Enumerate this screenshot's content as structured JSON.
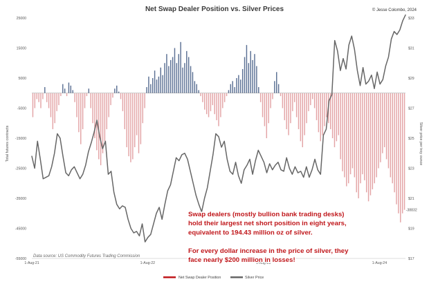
{
  "chart_data": {
    "type": "bar+line",
    "title": "Net Swap Dealer Position vs. Silver Prices",
    "copyright": "© Jesse Colombo, 2024",
    "left_axis": {
      "label": "Total futures contracts",
      "ticks": [
        25000,
        15000,
        5000,
        -5000,
        -15000,
        -25000,
        -35000,
        -45000,
        -55000
      ],
      "tick_labels": [
        "25000",
        "15000",
        "5000",
        "-5000",
        "-15000",
        "-25000",
        "-35000",
        "-45000",
        "-55000"
      ],
      "range": [
        -55000,
        25000
      ]
    },
    "right_axis": {
      "label": "Silver price per troy ounce",
      "ticks": [
        33,
        31,
        29,
        27,
        25,
        23,
        21,
        19,
        17
      ],
      "tick_labels": [
        "$33",
        "$31",
        "$29",
        "$27",
        "$25",
        "$23",
        "$21",
        "$19",
        "$17"
      ],
      "range": [
        17,
        33
      ]
    },
    "x_axis": {
      "ticks": [
        "2021-08-01",
        "2022-08-01",
        "2023-08-01",
        "2024-08-01"
      ],
      "tick_labels": [
        "1-Aug-21",
        "1-Aug-22",
        "1-Aug-23",
        "1-Aug-24"
      ],
      "start": "2021-08-01",
      "end": "2024-10-22"
    },
    "series": [
      {
        "name": "Net Swap Dealer Position",
        "type": "bar",
        "positive_color": "#5a6f93",
        "negative_color": "#e3a3a5",
        "values": [
          -8000,
          -5000,
          -2000,
          -3000,
          -5000,
          -2000,
          2000,
          -3000,
          -5000,
          -8000,
          -12000,
          -10000,
          -6000,
          -4000,
          -1000,
          3000,
          1500,
          -1000,
          3500,
          2500,
          1000,
          -3000,
          -8000,
          -13000,
          -17000,
          -12000,
          -5000,
          -1000,
          1500,
          -5000,
          -10000,
          -15000,
          -19000,
          -22000,
          -24000,
          -20000,
          -16000,
          -12000,
          -8000,
          -4000,
          -1500,
          1500,
          2500,
          500,
          -2000,
          -6000,
          -12000,
          -18000,
          -21000,
          -23000,
          -22000,
          -18000,
          -14000,
          -20000,
          -17000,
          -10000,
          -5000,
          2000,
          5500,
          3000,
          5000,
          7500,
          4500,
          5500,
          8500,
          6000,
          10000,
          13000,
          9000,
          11000,
          12000,
          15000,
          10000,
          13000,
          17000,
          8500,
          10000,
          14000,
          12000,
          9000,
          7000,
          4000,
          3000,
          1000,
          -1000,
          -3000,
          -5500,
          -7000,
          -8000,
          -6000,
          -4000,
          -7000,
          -9000,
          -11000,
          -8000,
          -5000,
          -3000,
          -1000,
          1000,
          3000,
          4000,
          2000,
          5000,
          6000,
          4500,
          8000,
          12000,
          16000,
          10000,
          14000,
          11000,
          13000,
          9000,
          2000,
          -3000,
          -8000,
          -11000,
          -15000,
          -10000,
          -5000,
          -2000,
          4000,
          7000,
          3000,
          -1000,
          -5000,
          -9000,
          -12000,
          -14000,
          -10000,
          -6000,
          -3000,
          -8000,
          -12000,
          -16000,
          -18000,
          -14000,
          -10000,
          -6000,
          -4000,
          -2000,
          -5000,
          -9000,
          -13000,
          -16000,
          -14000,
          -11000,
          -8000,
          -10000,
          -12000,
          -15000,
          -18000,
          -16000,
          -14000,
          -22000,
          -26000,
          -28000,
          -31000,
          -30000,
          -27000,
          -25000,
          -28000,
          -33000,
          -35000,
          -30000,
          -27000,
          -29000,
          -33000,
          -36000,
          -34000,
          -32000,
          -30000,
          -28000,
          -25000,
          -23000,
          -20000,
          -18000,
          -22000,
          -25000,
          -28000,
          -30000,
          -33000,
          -37000,
          -40000,
          -43000,
          -40000,
          -38832
        ]
      },
      {
        "name": "Silver Price",
        "type": "line",
        "color": "#666666",
        "values": [
          23.8,
          23.0,
          24.8,
          23.6,
          22.3,
          22.4,
          22.5,
          23.1,
          24.0,
          25.3,
          25.0,
          23.8,
          22.7,
          22.5,
          22.9,
          23.1,
          22.7,
          22.3,
          22.6,
          23.2,
          24.1,
          24.7,
          25.4,
          26.2,
          25.1,
          24.3,
          24.8,
          22.6,
          22.8,
          21.4,
          20.6,
          20.3,
          20.5,
          20.4,
          19.6,
          19.0,
          18.7,
          18.8,
          18.5,
          19.3,
          18.1,
          18.4,
          18.6,
          19.3,
          20.0,
          20.4,
          19.6,
          20.6,
          21.5,
          21.9,
          22.8,
          23.7,
          23.5,
          23.9,
          24.0,
          23.6,
          22.8,
          22.0,
          21.2,
          20.6,
          20.1,
          21.0,
          21.7,
          22.8,
          23.9,
          25.3,
          25.1,
          24.4,
          24.8,
          23.6,
          22.8,
          22.6,
          23.4,
          22.5,
          22.0,
          22.9,
          23.2,
          23.6,
          22.6,
          23.5,
          24.2,
          23.8,
          23.4,
          22.7,
          23.3,
          22.9,
          23.2,
          23.4,
          22.9,
          22.8,
          23.7,
          23.0,
          22.6,
          23.1,
          22.7,
          22.8,
          22.4,
          23.1,
          22.4,
          22.9,
          23.6,
          22.9,
          22.6,
          25.2,
          25.6,
          27.5,
          27.9,
          31.5,
          30.8,
          29.5,
          30.3,
          29.6,
          31.2,
          31.8,
          30.9,
          29.5,
          28.5,
          29.7,
          28.6,
          28.8,
          29.2,
          28.3,
          29.4,
          28.6,
          28.9,
          29.8,
          30.4,
          31.6,
          32.1,
          31.9,
          32.2,
          32.8,
          33.2
        ]
      }
    ],
    "annotations": {
      "last_value": "-38832",
      "source": "Data source: US Commodity Futures Trading Commission",
      "lines": [
        "Swap dealers (mostly bullion bank trading desks)",
        "hold their largest net short position in eight years,",
        "equivalent to 194.43 million oz of silver.",
        "",
        "For every dollar increase in the price of silver, they",
        "face nearly $200 million in losses!"
      ]
    },
    "legend_position": "bottom-center",
    "grid": false
  }
}
